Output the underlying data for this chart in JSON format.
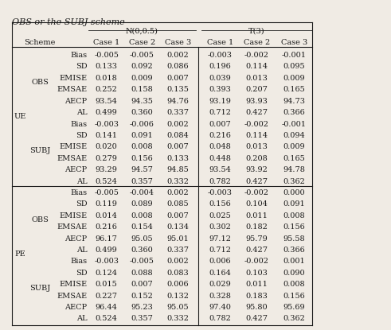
{
  "title": "OBS or the SUBJ scheme",
  "col_groups": [
    "N(0,0.5)",
    "T(3)"
  ],
  "sub_cols": [
    "Case 1",
    "Case 2",
    "Case 3"
  ],
  "row_structure": [
    {
      "group": "UE",
      "scheme": "OBS",
      "rows": [
        {
          "metric": "Bias",
          "n_c1": "-0.005",
          "n_c2": "-0.005",
          "n_c3": "0.002",
          "t_c1": "-0.003",
          "t_c2": "-0.002",
          "t_c3": "-0.001"
        },
        {
          "metric": "SD",
          "n_c1": "0.133",
          "n_c2": "0.092",
          "n_c3": "0.086",
          "t_c1": "0.196",
          "t_c2": "0.114",
          "t_c3": "0.095"
        },
        {
          "metric": "EMISE",
          "n_c1": "0.018",
          "n_c2": "0.009",
          "n_c3": "0.007",
          "t_c1": "0.039",
          "t_c2": "0.013",
          "t_c3": "0.009"
        },
        {
          "metric": "EMSAE",
          "n_c1": "0.252",
          "n_c2": "0.158",
          "n_c3": "0.135",
          "t_c1": "0.393",
          "t_c2": "0.207",
          "t_c3": "0.165"
        },
        {
          "metric": "AECP",
          "n_c1": "93.54",
          "n_c2": "94.35",
          "n_c3": "94.76",
          "t_c1": "93.19",
          "t_c2": "93.93",
          "t_c3": "94.73"
        },
        {
          "metric": "AL",
          "n_c1": "0.499",
          "n_c2": "0.360",
          "n_c3": "0.337",
          "t_c1": "0.712",
          "t_c2": "0.427",
          "t_c3": "0.366"
        }
      ]
    },
    {
      "group": "",
      "scheme": "SUBJ",
      "rows": [
        {
          "metric": "Bias",
          "n_c1": "-0.003",
          "n_c2": "-0.006",
          "n_c3": "0.002",
          "t_c1": "0.007",
          "t_c2": "-0.002",
          "t_c3": "-0.001"
        },
        {
          "metric": "SD",
          "n_c1": "0.141",
          "n_c2": "0.091",
          "n_c3": "0.084",
          "t_c1": "0.216",
          "t_c2": "0.114",
          "t_c3": "0.094"
        },
        {
          "metric": "EMISE",
          "n_c1": "0.020",
          "n_c2": "0.008",
          "n_c3": "0.007",
          "t_c1": "0.048",
          "t_c2": "0.013",
          "t_c3": "0.009"
        },
        {
          "metric": "EMSAE",
          "n_c1": "0.279",
          "n_c2": "0.156",
          "n_c3": "0.133",
          "t_c1": "0.448",
          "t_c2": "0.208",
          "t_c3": "0.165"
        },
        {
          "metric": "AECP",
          "n_c1": "93.29",
          "n_c2": "94.57",
          "n_c3": "94.85",
          "t_c1": "93.54",
          "t_c2": "93.92",
          "t_c3": "94.78"
        },
        {
          "metric": "AL",
          "n_c1": "0.524",
          "n_c2": "0.357",
          "n_c3": "0.332",
          "t_c1": "0.782",
          "t_c2": "0.427",
          "t_c3": "0.362"
        }
      ]
    },
    {
      "group": "PE",
      "scheme": "OBS",
      "rows": [
        {
          "metric": "Bias",
          "n_c1": "-0.005",
          "n_c2": "-0.004",
          "n_c3": "0.002",
          "t_c1": "-0.003",
          "t_c2": "-0.002",
          "t_c3": "0.000"
        },
        {
          "metric": "SD",
          "n_c1": "0.119",
          "n_c2": "0.089",
          "n_c3": "0.085",
          "t_c1": "0.156",
          "t_c2": "0.104",
          "t_c3": "0.091"
        },
        {
          "metric": "EMISE",
          "n_c1": "0.014",
          "n_c2": "0.008",
          "n_c3": "0.007",
          "t_c1": "0.025",
          "t_c2": "0.011",
          "t_c3": "0.008"
        },
        {
          "metric": "EMSAE",
          "n_c1": "0.216",
          "n_c2": "0.154",
          "n_c3": "0.134",
          "t_c1": "0.302",
          "t_c2": "0.182",
          "t_c3": "0.156"
        },
        {
          "metric": "AECP",
          "n_c1": "96.17",
          "n_c2": "95.05",
          "n_c3": "95.01",
          "t_c1": "97.12",
          "t_c2": "95.79",
          "t_c3": "95.58"
        },
        {
          "metric": "AL",
          "n_c1": "0.499",
          "n_c2": "0.360",
          "n_c3": "0.337",
          "t_c1": "0.712",
          "t_c2": "0.427",
          "t_c3": "0.366"
        }
      ]
    },
    {
      "group": "",
      "scheme": "SUBJ",
      "rows": [
        {
          "metric": "Bias",
          "n_c1": "-0.003",
          "n_c2": "-0.005",
          "n_c3": "0.002",
          "t_c1": "0.006",
          "t_c2": "-0.002",
          "t_c3": "0.001"
        },
        {
          "metric": "SD",
          "n_c1": "0.124",
          "n_c2": "0.088",
          "n_c3": "0.083",
          "t_c1": "0.164",
          "t_c2": "0.103",
          "t_c3": "0.090"
        },
        {
          "metric": "EMISE",
          "n_c1": "0.015",
          "n_c2": "0.007",
          "n_c3": "0.006",
          "t_c1": "0.029",
          "t_c2": "0.011",
          "t_c3": "0.008"
        },
        {
          "metric": "EMSAE",
          "n_c1": "0.227",
          "n_c2": "0.152",
          "n_c3": "0.132",
          "t_c1": "0.328",
          "t_c2": "0.183",
          "t_c3": "0.156"
        },
        {
          "metric": "AECP",
          "n_c1": "96.44",
          "n_c2": "95.23",
          "n_c3": "95.05",
          "t_c1": "97.40",
          "t_c2": "95.80",
          "t_c3": "95.69"
        },
        {
          "metric": "AL",
          "n_c1": "0.524",
          "n_c2": "0.357",
          "n_c3": "0.332",
          "t_c1": "0.782",
          "t_c2": "0.427",
          "t_c3": "0.362"
        }
      ]
    }
  ],
  "bg_color": "#f0ebe4",
  "text_color": "#1a1a1a",
  "font_size": 7.0,
  "title_font_size": 8.0
}
